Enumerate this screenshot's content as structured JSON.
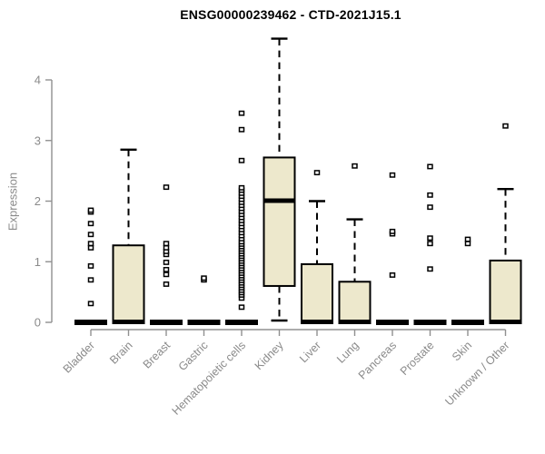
{
  "page": {
    "background": "#ffffff"
  },
  "chart_data": {
    "type": "boxplot",
    "title": "ENSG00000239462 - CTD-2021J15.1",
    "ylabel": "Expression",
    "xlabel": "",
    "ylim": [
      0,
      4.7
    ],
    "yticks": [
      0,
      1,
      2,
      3,
      4
    ],
    "grid": false,
    "legend": "none",
    "colors": {
      "box_fill": "#EDE8CC",
      "box_stroke": "#000000",
      "median": "#000000",
      "whisker": "#000000",
      "axis": "#909090",
      "tick_label": "#8a8a8a",
      "title": "#000000"
    },
    "categories": [
      "Bladder",
      "Brain",
      "Breast",
      "Gastric",
      "Hematopoietic cells",
      "Kidney",
      "Liver",
      "Lung",
      "Pancreas",
      "Prostate",
      "Skin",
      "Unknown / Other"
    ],
    "boxes": [
      {
        "category": "Bladder",
        "min": 0,
        "q1": 0,
        "median": 0,
        "q3": 0,
        "max": 0,
        "outliers": [
          0.31,
          0.7,
          0.93,
          1.23,
          1.3,
          1.45,
          1.63,
          1.82,
          1.85
        ]
      },
      {
        "category": "Brain",
        "min": 0,
        "q1": 0,
        "median": 0,
        "q3": 1.27,
        "max": 2.85,
        "outliers": []
      },
      {
        "category": "Breast",
        "min": 0,
        "q1": 0,
        "median": 0,
        "q3": 0,
        "max": 0,
        "outliers": [
          0.63,
          0.79,
          0.87,
          0.99,
          1.12,
          1.17,
          1.23,
          1.3,
          2.23
        ]
      },
      {
        "category": "Gastric",
        "min": 0,
        "q1": 0,
        "median": 0,
        "q3": 0,
        "max": 0,
        "outliers": [
          0.7,
          0.73
        ]
      },
      {
        "category": "Hematopoietic cells",
        "min": 0,
        "q1": 0,
        "median": 0,
        "q3": 0,
        "max": 0,
        "outliers": [
          0.25,
          0.4,
          0.45,
          0.49,
          0.53,
          0.57,
          0.61,
          0.65,
          0.69,
          0.73,
          0.77,
          0.81,
          0.85,
          0.89,
          0.93,
          0.97,
          1.01,
          1.05,
          1.09,
          1.13,
          1.17,
          1.21,
          1.25,
          1.29,
          1.33,
          1.38,
          1.43,
          1.48,
          1.53,
          1.58,
          1.63,
          1.68,
          1.73,
          1.78,
          1.83,
          1.88,
          1.93,
          1.98,
          2.03,
          2.08,
          2.13,
          2.18,
          2.22,
          2.67,
          3.18,
          3.45
        ]
      },
      {
        "category": "Kidney",
        "min": 0.03,
        "q1": 0.6,
        "median": 2.0,
        "q3": 2.72,
        "max": 4.68,
        "outliers": []
      },
      {
        "category": "Liver",
        "min": 0,
        "q1": 0,
        "median": 0,
        "q3": 0.96,
        "max": 2.0,
        "outliers": [
          2.47
        ]
      },
      {
        "category": "Lung",
        "min": 0,
        "q1": 0,
        "median": 0,
        "q3": 0.67,
        "max": 1.7,
        "outliers": [
          2.58
        ]
      },
      {
        "category": "Pancreas",
        "min": 0,
        "q1": 0,
        "median": 0,
        "q3": 0,
        "max": 0,
        "outliers": [
          0.78,
          1.46,
          1.5,
          2.43
        ]
      },
      {
        "category": "Prostate",
        "min": 0,
        "q1": 0,
        "median": 0,
        "q3": 0,
        "max": 0,
        "outliers": [
          0.88,
          1.3,
          1.39,
          1.9,
          2.1,
          2.57
        ]
      },
      {
        "category": "Skin",
        "min": 0,
        "q1": 0,
        "median": 0,
        "q3": 0,
        "max": 0,
        "outliers": [
          1.3,
          1.37
        ]
      },
      {
        "category": "Unknown / Other",
        "min": 0,
        "q1": 0,
        "median": 0,
        "q3": 1.02,
        "max": 2.2,
        "outliers": [
          3.24
        ]
      }
    ]
  }
}
